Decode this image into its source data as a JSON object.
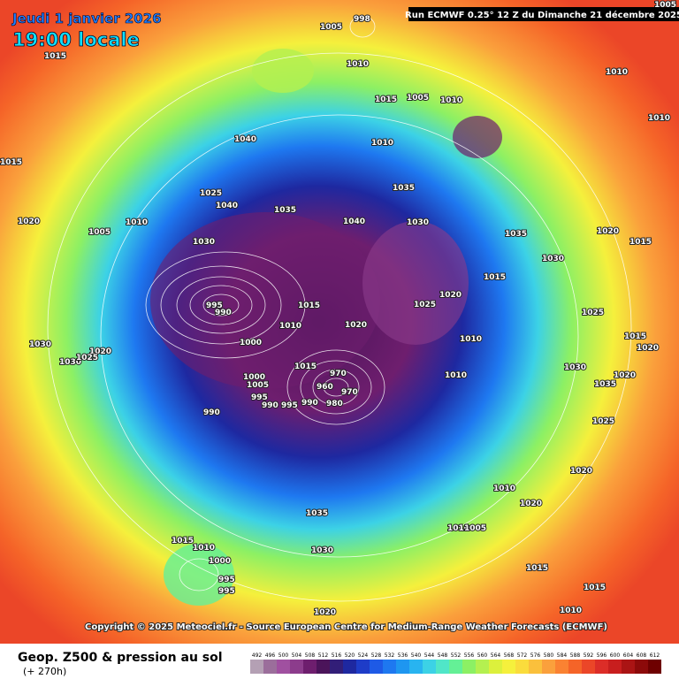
{
  "header": {
    "date": "Jeudi 1 janvier 2026",
    "time": "19:00 locale",
    "run": "Run ECMWF 0.25° 12 Z du Dimanche 21 décembre 2025"
  },
  "copyright": "Copyright © 2025 Meteociel.fr - Source European Centre for Medium-Range Weather Forecasts (ECMWF)",
  "legend": {
    "title": "Geop. Z500 & pression au sol",
    "lead": "(+ 270h)",
    "scale": [
      492,
      496,
      500,
      504,
      508,
      512,
      516,
      520,
      524,
      528,
      532,
      536,
      540,
      544,
      548,
      552,
      556,
      560,
      564,
      568,
      572,
      576,
      580,
      584,
      588,
      592,
      596,
      600,
      604,
      608,
      612
    ],
    "colors": [
      "#b4a0b4",
      "#9b6e9b",
      "#a050a0",
      "#8c3c8c",
      "#6e1e6e",
      "#4b145a",
      "#321e78",
      "#1e28a0",
      "#1e3cc8",
      "#1e5ae6",
      "#1e78f0",
      "#1e96f0",
      "#28b4f0",
      "#3cd2e6",
      "#50e6c8",
      "#64f096",
      "#8cf064",
      "#b4f050",
      "#dcf03c",
      "#f5f03c",
      "#fadc3c",
      "#fac03c",
      "#faa03c",
      "#fa8232",
      "#f56428",
      "#eb4628",
      "#dc2d28",
      "#c81e1e",
      "#aa1414",
      "#8c0a0a",
      "#6e0000"
    ]
  },
  "isobar_labels": [
    1005,
    1015,
    998,
    1005,
    1010,
    1040,
    1015,
    1020,
    1005,
    1010,
    1025,
    1040,
    1030,
    1035,
    1040,
    1030,
    1005,
    1010,
    1010,
    1035,
    1015,
    1010,
    1010,
    1020,
    1015,
    995,
    990,
    1000,
    1015,
    1010,
    1020,
    1025,
    1020,
    1010,
    1010,
    1015,
    970,
    960,
    970,
    990,
    980,
    995,
    990,
    995,
    1000,
    1005,
    990,
    1030,
    1030,
    1020,
    1025,
    1035,
    1030,
    1015,
    1010,
    1000,
    995,
    995,
    1020,
    1010,
    1020,
    1010,
    1005,
    1020,
    1025,
    1030,
    1035,
    1025,
    1015,
    1020,
    1020,
    1030,
    1015,
    1035,
    1015,
    1010,
    1015
  ]
}
